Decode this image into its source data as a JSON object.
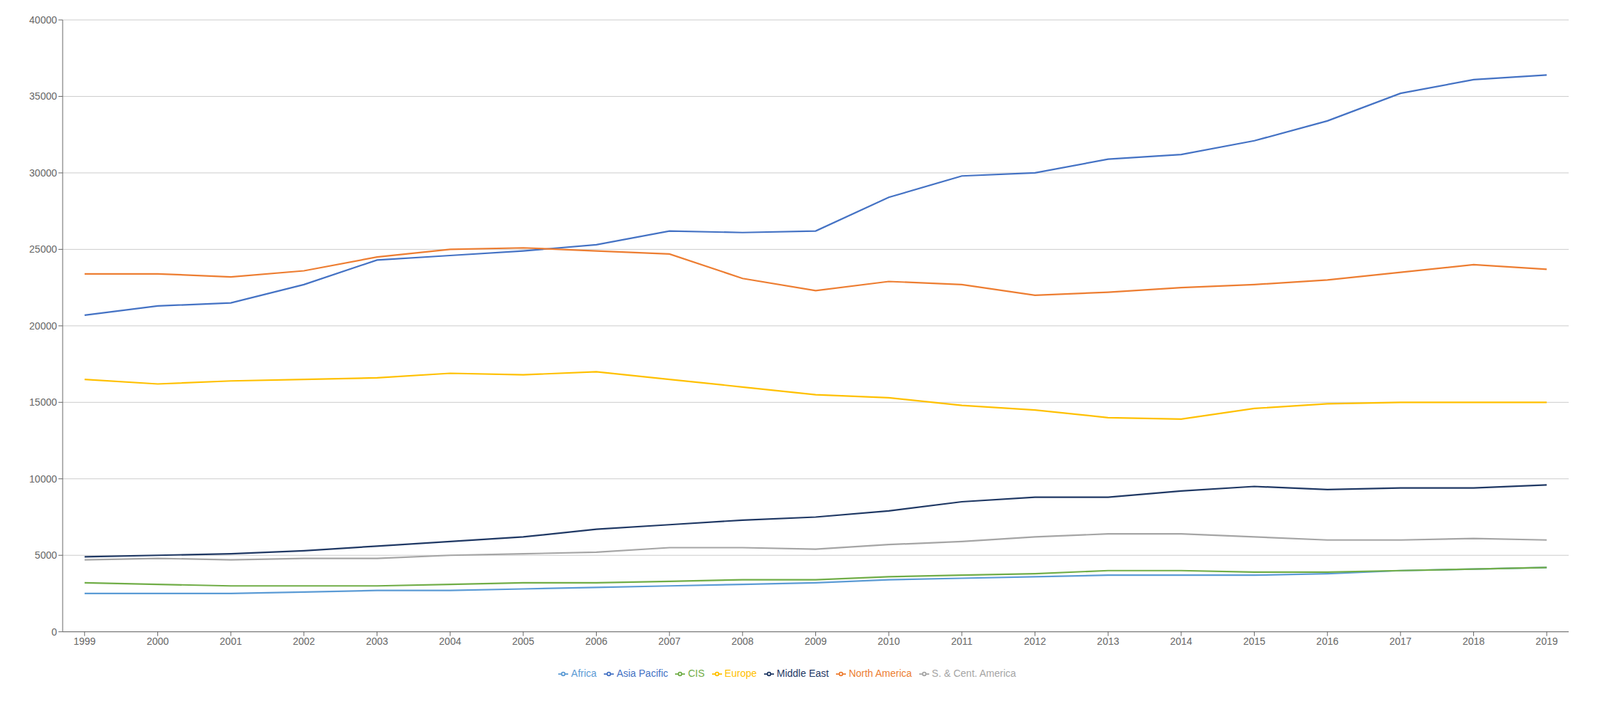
{
  "chart_data": {
    "type": "line",
    "x": [
      1999,
      2000,
      2001,
      2002,
      2003,
      2004,
      2005,
      2006,
      2007,
      2008,
      2009,
      2010,
      2011,
      2012,
      2013,
      2014,
      2015,
      2016,
      2017,
      2018,
      2019
    ],
    "series": [
      {
        "name": "Asia Pacific",
        "color": "#4472C4",
        "values": [
          20700,
          21300,
          21500,
          22700,
          24300,
          24600,
          24900,
          25300,
          26200,
          26100,
          26200,
          28400,
          29800,
          30000,
          30900,
          31200,
          32100,
          33400,
          35200,
          36100,
          36400
        ]
      },
      {
        "name": "North America",
        "color": "#ED7D31",
        "values": [
          23400,
          23400,
          23200,
          23600,
          24500,
          25000,
          25100,
          24900,
          24700,
          23100,
          22300,
          22900,
          22700,
          22000,
          22200,
          22500,
          22700,
          23000,
          23500,
          24000,
          23700
        ]
      },
      {
        "name": "S. & Cent. America",
        "color": "#A5A5A5",
        "values": [
          4700,
          4800,
          4700,
          4800,
          4800,
          5000,
          5100,
          5200,
          5500,
          5500,
          5400,
          5700,
          5900,
          6200,
          6400,
          6400,
          6200,
          6000,
          6000,
          6100,
          6000
        ]
      },
      {
        "name": "Europe",
        "color": "#FFC000",
        "values": [
          16500,
          16200,
          16400,
          16500,
          16600,
          16900,
          16800,
          17000,
          16500,
          16000,
          15500,
          15300,
          14800,
          14500,
          14000,
          13900,
          14600,
          14900,
          15000,
          15000,
          15000
        ]
      },
      {
        "name": "Africa",
        "color": "#5B9BD5",
        "values": [
          2500,
          2500,
          2500,
          2600,
          2700,
          2700,
          2800,
          2900,
          3000,
          3100,
          3200,
          3400,
          3500,
          3600,
          3700,
          3700,
          3700,
          3800,
          4000,
          4100,
          4200
        ]
      },
      {
        "name": "CIS",
        "color": "#70AD47",
        "values": [
          3200,
          3100,
          3000,
          3000,
          3000,
          3100,
          3200,
          3200,
          3300,
          3400,
          3400,
          3600,
          3700,
          3800,
          4000,
          4000,
          3900,
          3900,
          4000,
          4100,
          4200
        ]
      },
      {
        "name": "Middle East",
        "color": "#1F3864",
        "values": [
          4900,
          5000,
          5100,
          5300,
          5600,
          5900,
          6200,
          6700,
          7000,
          7300,
          7500,
          7900,
          8500,
          8800,
          8800,
          9200,
          9500,
          9300,
          9400,
          9400,
          9600
        ]
      }
    ],
    "xlim": [
      1998.7,
      2019.3
    ],
    "xticks": [
      1999,
      2000,
      2001,
      2002,
      2003,
      2004,
      2005,
      2006,
      2007,
      2008,
      2009,
      2010,
      2011,
      2012,
      2013,
      2014,
      2015,
      2016,
      2017,
      2018,
      2019
    ],
    "ylim": [
      0,
      40000
    ],
    "yticks": [
      0,
      5000,
      10000,
      15000,
      20000,
      25000,
      30000,
      35000,
      40000
    ],
    "grid": "y",
    "legend": "bottom"
  }
}
